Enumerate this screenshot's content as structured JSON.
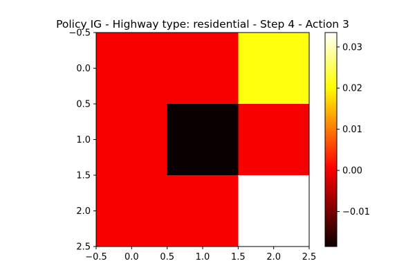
{
  "chart_data": {
    "type": "heatmap",
    "title": "Policy IG - Highway type: residential - Step 4 - Action 3",
    "xlabel": "",
    "ylabel": "",
    "colormap": "hot",
    "vmin": -0.0185,
    "vmax": 0.0335,
    "x_ticks": [
      -0.5,
      0.0,
      0.5,
      1.0,
      1.5,
      2.0,
      2.5
    ],
    "x_tick_labels": [
      "−0.5",
      "0.0",
      "0.5",
      "1.0",
      "1.5",
      "2.0",
      "2.5"
    ],
    "y_ticks": [
      -0.5,
      0.0,
      0.5,
      1.0,
      1.5,
      2.0,
      2.5
    ],
    "y_tick_labels": [
      "−0.5",
      "0.0",
      "0.5",
      "1.0",
      "1.5",
      "2.0",
      "2.5"
    ],
    "xlim": [
      -0.5,
      2.5
    ],
    "ylim": [
      2.5,
      -0.5
    ],
    "values": [
      [
        0.0,
        0.0,
        0.021
      ],
      [
        0.0,
        -0.0185,
        0.0
      ],
      [
        0.0,
        0.0,
        0.0335
      ]
    ],
    "colorbar": {
      "ticks": [
        -0.01,
        0.0,
        0.01,
        0.02,
        0.03
      ],
      "tick_labels": [
        "−0.01",
        "0.00",
        "0.01",
        "0.02",
        "0.03"
      ]
    }
  }
}
